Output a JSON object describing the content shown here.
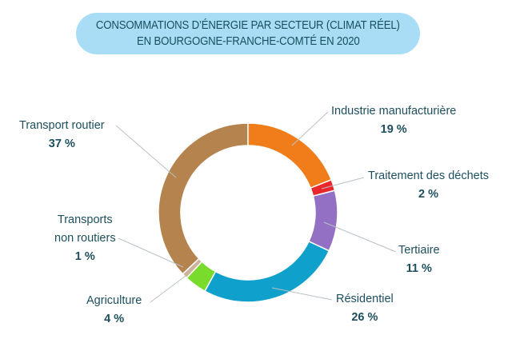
{
  "chart_data": {
    "type": "pie",
    "subtype": "donut",
    "title": [
      "CONSOMMATIONS D’ÉNERGIE PAR SECTEUR (CLIMAT RÉEL)",
      "EN BOURGOGNE-FRANCHE-COMTÉ EN 2020"
    ],
    "slices": [
      {
        "name": "Industrie manufacturière",
        "label_lines": [
          "Industrie manufacturière"
        ],
        "value": 19,
        "value_label": "19 %",
        "color": "#f07d1a"
      },
      {
        "name": "Traitement des déchets",
        "label_lines": [
          "Traitement des déchets"
        ],
        "value": 2,
        "value_label": "2 %",
        "color": "#e8262b"
      },
      {
        "name": "Tertiaire",
        "label_lines": [
          "Tertiaire"
        ],
        "value": 11,
        "value_label": "11 %",
        "color": "#9370c4"
      },
      {
        "name": "Résidentiel",
        "label_lines": [
          "Résidentiel"
        ],
        "value": 26,
        "value_label": "26 %",
        "color": "#10a0cc"
      },
      {
        "name": "Agriculture",
        "label_lines": [
          "Agriculture"
        ],
        "value": 4,
        "value_label": "4 %",
        "color": "#79dc2c"
      },
      {
        "name": "Transports non routiers",
        "label_lines": [
          "Transports",
          "non routiers"
        ],
        "value": 1,
        "value_label": "1 %",
        "color": "#cdb39a"
      },
      {
        "name": "Transport routier",
        "label_lines": [
          "Transport routier"
        ],
        "value": 37,
        "value_label": "37 %",
        "color": "#b5834e"
      }
    ]
  }
}
